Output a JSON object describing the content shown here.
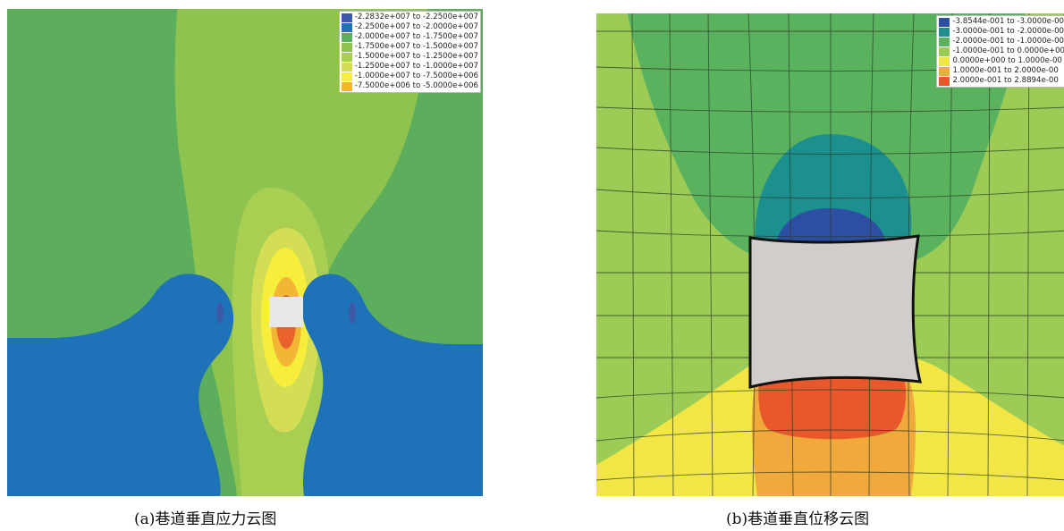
{
  "figure": {
    "panel_a": {
      "caption": "(a)巷道垂直应力云图",
      "legend": [
        {
          "label": "-2.2832e+007 to -2.2500e+007",
          "color": "#3a5aa8"
        },
        {
          "label": "-2.2500e+007 to -2.0000e+007",
          "color": "#1e73b8"
        },
        {
          "label": "-2.0000e+007 to -1.7500e+007",
          "color": "#5cae5c"
        },
        {
          "label": "-1.7500e+007 to -1.5000e+007",
          "color": "#8dc34e"
        },
        {
          "label": "-1.5000e+007 to -1.2500e+007",
          "color": "#a9cf52"
        },
        {
          "label": "-1.2500e+007 to -1.0000e+007",
          "color": "#d3de55"
        },
        {
          "label": "-1.0000e+007 to -7.5000e+006",
          "color": "#f7ee3c"
        },
        {
          "label": "-7.5000e+006 to -5.0000e+006",
          "color": "#f2b534"
        }
      ]
    },
    "panel_b": {
      "caption": "(b)巷道垂直位移云图",
      "legend": [
        {
          "label": "-3.8544e-001 to -3.0000e-00",
          "color": "#2d4fa3"
        },
        {
          "label": "-3.0000e-001 to -2.0000e-00",
          "color": "#1c8f8f"
        },
        {
          "label": "-2.0000e-001 to -1.0000e-00",
          "color": "#5ab25e"
        },
        {
          "label": "-1.0000e-001 to  0.0000e+00",
          "color": "#9ccc55"
        },
        {
          "label": "0.0000e+000 to  1.0000e-00",
          "color": "#f2e645"
        },
        {
          "label": "1.0000e-001 to  2.0000e-00",
          "color": "#f0a93a"
        },
        {
          "label": "2.0000e-001 to  2.8894e-00",
          "color": "#e8582b"
        }
      ]
    }
  }
}
